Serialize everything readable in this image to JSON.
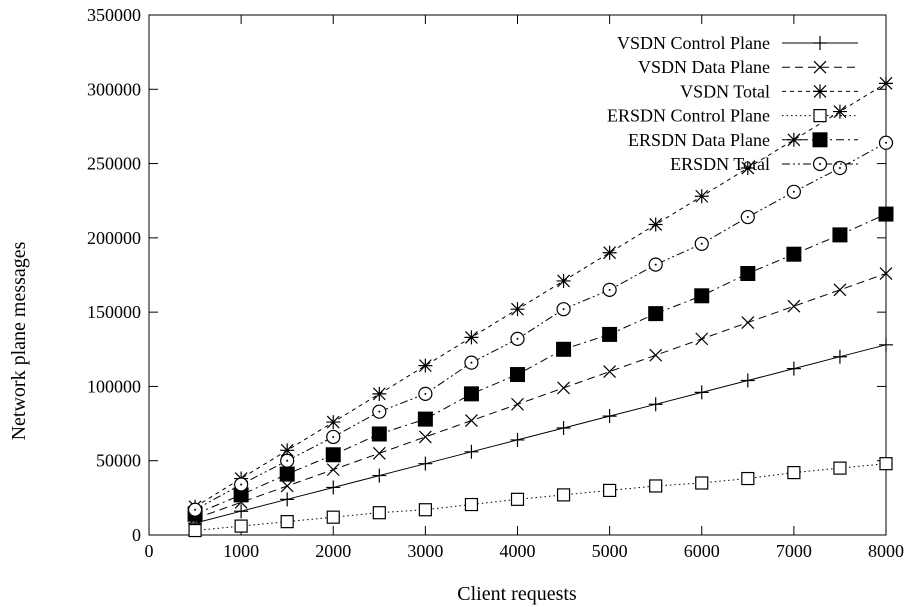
{
  "chart_data": {
    "type": "line",
    "xlabel": "Client requests",
    "ylabel": "Network plane messages",
    "xlim": [
      0,
      8000
    ],
    "ylim": [
      0,
      350000
    ],
    "x_ticks": [
      0,
      1000,
      2000,
      3000,
      4000,
      5000,
      6000,
      7000,
      8000
    ],
    "y_ticks": [
      0,
      50000,
      100000,
      150000,
      200000,
      250000,
      300000,
      350000
    ],
    "x_tick_labels": [
      "0",
      "1000",
      "2000",
      "3000",
      "4000",
      "5000",
      "6000",
      "7000",
      "8000"
    ],
    "y_tick_labels": [
      "0",
      "50000",
      "100000",
      "150000",
      "200000",
      "250000",
      "300000",
      "350000"
    ],
    "grid": false,
    "legend_position": "top-right",
    "x": [
      500,
      1000,
      1500,
      2000,
      2500,
      3000,
      3500,
      4000,
      4500,
      5000,
      5500,
      6000,
      6500,
      7000,
      7500,
      8000
    ],
    "series": [
      {
        "name": "VSDN Control Plane",
        "marker": "plus",
        "dash": "solid",
        "values": [
          8000,
          16000,
          24000,
          32000,
          40000,
          48000,
          56000,
          64000,
          72000,
          80000,
          88000,
          96000,
          104000,
          112000,
          120000,
          128000
        ]
      },
      {
        "name": "VSDN Data Plane",
        "marker": "cross",
        "dash": "dashed",
        "values": [
          11000,
          22000,
          33000,
          44000,
          55000,
          66000,
          77000,
          88000,
          99000,
          110000,
          121000,
          132000,
          143000,
          154000,
          165000,
          176000
        ]
      },
      {
        "name": "VSDN Total",
        "marker": "star",
        "dash": "short-dashed",
        "values": [
          19000,
          38000,
          57000,
          76000,
          95000,
          114000,
          133000,
          152000,
          171000,
          190000,
          209000,
          228000,
          247000,
          266000,
          285000,
          304000
        ]
      },
      {
        "name": "ERSDN Control Plane",
        "marker": "open-square",
        "dash": "dotted",
        "values": [
          3000,
          6000,
          9000,
          12000,
          15000,
          17000,
          20500,
          24000,
          27000,
          30000,
          33000,
          35000,
          38000,
          42000,
          45000,
          48000
        ]
      },
      {
        "name": "ERSDN Data Plane",
        "marker": "filled-square",
        "dash": "dash-dot",
        "values": [
          14000,
          27000,
          41000,
          54000,
          68000,
          78000,
          95000,
          108000,
          125000,
          135000,
          149000,
          161000,
          176000,
          189000,
          202000,
          216000
        ]
      },
      {
        "name": "ERSDN Total",
        "marker": "open-circle",
        "dash": "dash-dot-dot",
        "values": [
          17000,
          34000,
          50000,
          66000,
          83000,
          95000,
          116000,
          132000,
          152000,
          165000,
          182000,
          196000,
          214000,
          231000,
          247000,
          264000
        ]
      }
    ]
  }
}
